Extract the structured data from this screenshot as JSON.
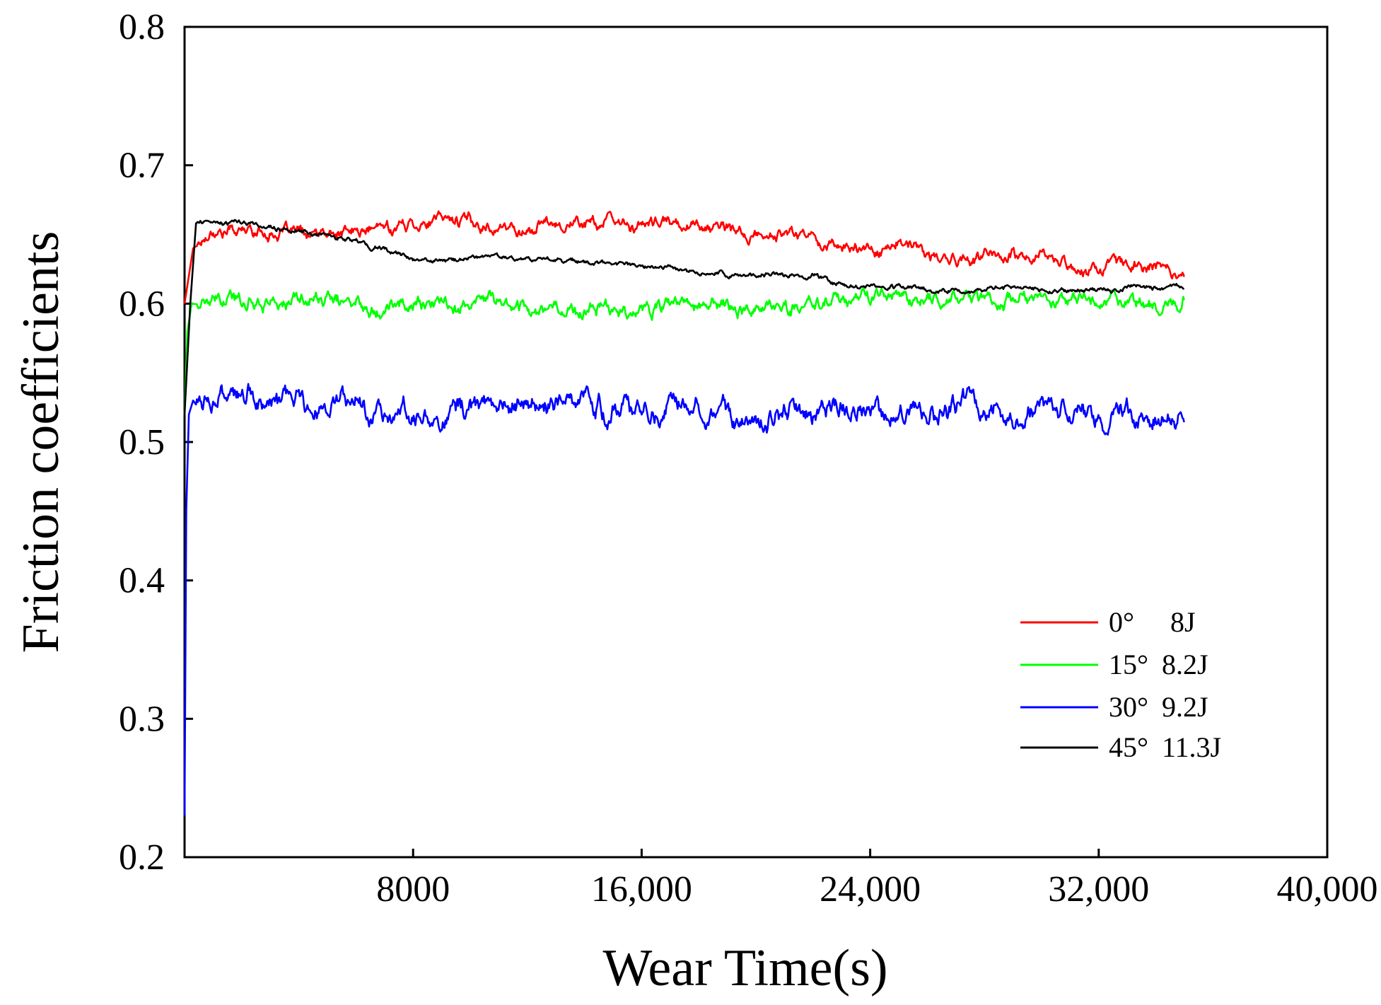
{
  "chart_data": {
    "type": "line",
    "title": "",
    "xlabel": "Wear Time(s)",
    "ylabel": "Friction coefficients",
    "xlim": [
      0,
      40000
    ],
    "ylim": [
      0.2,
      0.8
    ],
    "x_ticks": [
      8000,
      16000,
      24000,
      32000,
      40000
    ],
    "x_tick_labels": [
      "8000",
      "16,000",
      "24,000",
      "32,000",
      "40,000"
    ],
    "y_ticks": [
      0.2,
      0.3,
      0.4,
      0.5,
      0.6,
      0.7,
      0.8
    ],
    "y_tick_labels": [
      "0.2",
      "0.3",
      "0.4",
      "0.5",
      "0.6",
      "0.7",
      "0.8"
    ],
    "grid": false,
    "legend_position": "bottom-right",
    "series": [
      {
        "name": "0°   8J",
        "legend_parts": [
          "0°",
          "8J"
        ],
        "color": "#ff0000",
        "x": [
          0,
          300,
          1000,
          2500,
          4000,
          6000,
          8000,
          9000,
          11000,
          12000,
          13000,
          14000,
          15000,
          17000,
          18000,
          19000,
          20000,
          21000,
          22000,
          23000,
          24000,
          25000,
          26000,
          27000,
          28000,
          29000,
          30000,
          31000,
          32000,
          33000,
          34000,
          35000
        ],
        "y": [
          0.6,
          0.64,
          0.655,
          0.655,
          0.65,
          0.65,
          0.66,
          0.66,
          0.655,
          0.652,
          0.66,
          0.658,
          0.655,
          0.655,
          0.658,
          0.655,
          0.65,
          0.65,
          0.648,
          0.643,
          0.64,
          0.645,
          0.635,
          0.63,
          0.632,
          0.628,
          0.63,
          0.628,
          0.625,
          0.63,
          0.628,
          0.625
        ]
      },
      {
        "name": "15° 8.2J",
        "legend_parts": [
          "15°",
          "8.2J"
        ],
        "color": "#00ff00",
        "x": [
          0,
          100,
          250,
          1000,
          4000,
          8000,
          12000,
          16000,
          20000,
          24000,
          28000,
          32000,
          35000
        ],
        "y": [
          0.52,
          0.58,
          0.6,
          0.6,
          0.602,
          0.6,
          0.6,
          0.6,
          0.6,
          0.602,
          0.603,
          0.6,
          0.6
        ]
      },
      {
        "name": "30° 9.2J",
        "legend_parts": [
          "30°",
          "9.2J"
        ],
        "color": "#0000ff",
        "x": [
          0,
          60,
          150,
          300,
          1000,
          3000,
          5000,
          8000,
          12000,
          16000,
          20000,
          24000,
          25000,
          28000,
          32000,
          34000,
          35000
        ],
        "y": [
          0.23,
          0.45,
          0.52,
          0.53,
          0.53,
          0.53,
          0.528,
          0.525,
          0.525,
          0.525,
          0.525,
          0.52,
          0.518,
          0.522,
          0.52,
          0.515,
          0.515
        ]
      },
      {
        "name": "45° 11.3J",
        "legend_parts": [
          "45°",
          "11.3J"
        ],
        "color": "#000000",
        "x": [
          0,
          200,
          400,
          2000,
          4000,
          5000,
          7000,
          8000,
          9000,
          11000,
          13000,
          15000,
          17000,
          19000,
          21000,
          22000,
          23000,
          24000,
          26000,
          28000,
          29000,
          30000,
          32000,
          33000,
          34000,
          35000
        ],
        "y": [
          0.52,
          0.6,
          0.658,
          0.657,
          0.652,
          0.65,
          0.64,
          0.632,
          0.63,
          0.635,
          0.632,
          0.628,
          0.625,
          0.622,
          0.62,
          0.62,
          0.613,
          0.613,
          0.61,
          0.61,
          0.612,
          0.61,
          0.61,
          0.612,
          0.612,
          0.612
        ]
      }
    ]
  }
}
